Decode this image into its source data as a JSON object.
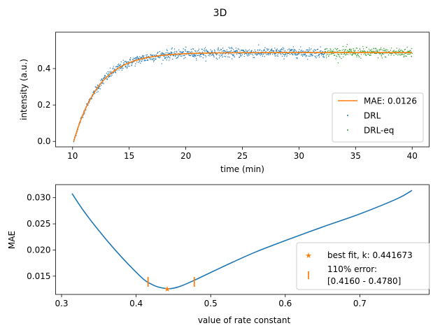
{
  "suptitle": "3D",
  "colors": {
    "fit": "#ff7f0e",
    "drl": "#1f77b4",
    "drl_eq": "#2ca02c",
    "curve": "#1f77b4",
    "marker": "#ff7f0e"
  },
  "chart_data": [
    {
      "type": "scatter",
      "xlabel": "time (min)",
      "ylabel": "intensity (a.u.)",
      "xlim": [
        8.5,
        41.5
      ],
      "ylim": [
        -0.03,
        0.6
      ],
      "xticks": [
        10,
        15,
        20,
        25,
        30,
        35,
        40
      ],
      "yticks": [
        0.0,
        0.2,
        0.4
      ],
      "xtick_labels": [
        "10",
        "15",
        "20",
        "25",
        "30",
        "35",
        "40"
      ],
      "ytick_labels": [
        "0.0",
        "0.2",
        "0.4"
      ],
      "legend_position": "lower right",
      "series": [
        {
          "name": "MAE: 0.0126",
          "kind": "line",
          "model": {
            "equation": "A*(1-exp(-k*(t-t0)))",
            "A": 0.488,
            "k": 0.441673,
            "t0": 10.1
          },
          "x_range": [
            10.1,
            40.0
          ]
        },
        {
          "name": "DRL",
          "kind": "scatter",
          "x_range": [
            10.1,
            32.3
          ],
          "noise": 0.013,
          "approx_points": 1000
        },
        {
          "name": "DRL-eq",
          "kind": "scatter",
          "x_range": [
            32.3,
            40.0
          ],
          "noise": 0.014,
          "approx_points": 300
        }
      ]
    },
    {
      "type": "line",
      "xlabel": "value of rate constant",
      "ylabel": "MAE",
      "xlim": [
        0.292,
        0.793
      ],
      "ylim": [
        0.0115,
        0.0325
      ],
      "xticks": [
        0.3,
        0.4,
        0.5,
        0.6,
        0.7
      ],
      "yticks": [
        0.015,
        0.02,
        0.025,
        0.03
      ],
      "xtick_labels": [
        "0.3",
        "0.4",
        "0.5",
        "0.6",
        "0.7"
      ],
      "ytick_labels": [
        "0.015",
        "0.020",
        "0.025",
        "0.030"
      ],
      "legend_position": "lower right",
      "curve": {
        "x": [
          0.314,
          0.33,
          0.35,
          0.37,
          0.39,
          0.41,
          0.42,
          0.43,
          0.441673,
          0.45,
          0.46,
          0.478,
          0.5,
          0.53,
          0.56,
          0.6,
          0.65,
          0.7,
          0.75,
          0.77
        ],
        "y": [
          0.0308,
          0.0274,
          0.0237,
          0.0203,
          0.0172,
          0.0144,
          0.0135,
          0.0129,
          0.0126,
          0.0127,
          0.0131,
          0.0142,
          0.0157,
          0.0177,
          0.0196,
          0.0218,
          0.0244,
          0.0269,
          0.0298,
          0.0314
        ]
      },
      "best_fit": {
        "label": "best fit, k: 0.441673",
        "k": 0.441673,
        "mae": 0.0126
      },
      "error_band": {
        "label_line1": "110% error:",
        "label_line2": "[0.4160 - 0.4780]",
        "low": 0.416,
        "high": 0.478,
        "mae": 0.0139
      }
    }
  ]
}
